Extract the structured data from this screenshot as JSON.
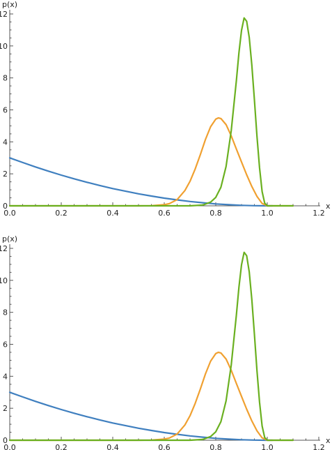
{
  "chart_data": [
    {
      "type": "line",
      "title": "",
      "xlabel": "x",
      "ylabel": "p(x)",
      "xlim": [
        0,
        1.2
      ],
      "ylim": [
        0,
        12
      ],
      "x_ticks": [
        0.0,
        0.2,
        0.4,
        0.6,
        0.8,
        1.0,
        1.2
      ],
      "x_tick_labels": [
        "0.0",
        "0.2",
        "0.4",
        "0.6",
        "0.8",
        "1.0",
        "1.2"
      ],
      "y_ticks": [
        0,
        2,
        4,
        6,
        8,
        10,
        12
      ],
      "y_tick_labels": [
        "0",
        "2",
        "4",
        "6",
        "8",
        "10",
        "12"
      ],
      "grid": false,
      "series": [
        {
          "color": "#3f7fbf",
          "x": [
            0,
            0.05,
            0.1,
            0.15,
            0.2,
            0.25,
            0.3,
            0.35,
            0.4,
            0.45,
            0.5,
            0.55,
            0.6,
            0.65,
            0.7,
            0.75,
            0.8,
            0.85,
            0.9,
            0.95,
            1.0,
            1.02
          ],
          "y": [
            3.0,
            2.71,
            2.43,
            2.17,
            1.92,
            1.69,
            1.47,
            1.27,
            1.08,
            0.91,
            0.75,
            0.61,
            0.48,
            0.37,
            0.27,
            0.19,
            0.12,
            0.07,
            0.03,
            0.01,
            0,
            0
          ]
        },
        {
          "color": "#f0a030",
          "x": [
            0,
            0.5,
            0.55,
            0.6,
            0.62,
            0.65,
            0.68,
            0.7,
            0.72,
            0.74,
            0.76,
            0.78,
            0.8,
            0.81,
            0.82,
            0.84,
            0.86,
            0.88,
            0.9,
            0.92,
            0.94,
            0.96,
            0.98,
            1.0,
            1.1
          ],
          "y": [
            0,
            0,
            0.01,
            0.07,
            0.14,
            0.39,
            0.95,
            1.53,
            2.3,
            3.2,
            4.15,
            4.95,
            5.42,
            5.5,
            5.46,
            5.08,
            4.38,
            3.55,
            2.74,
            1.94,
            1.21,
            0.59,
            0.15,
            0,
            0
          ]
        },
        {
          "color": "#6ab020",
          "x": [
            0,
            0.7,
            0.75,
            0.78,
            0.8,
            0.82,
            0.84,
            0.86,
            0.88,
            0.89,
            0.9,
            0.91,
            0.92,
            0.93,
            0.94,
            0.95,
            0.96,
            0.97,
            0.98,
            0.99,
            1.0,
            1.1
          ],
          "y": [
            0,
            0,
            0.05,
            0.23,
            0.53,
            1.16,
            2.46,
            4.69,
            7.83,
            9.58,
            10.97,
            11.75,
            11.54,
            10.53,
            8.81,
            6.64,
            4.35,
            2.38,
            0.89,
            0.17,
            0,
            0
          ]
        }
      ]
    },
    {
      "type": "line",
      "title": "",
      "xlabel": "x",
      "ylabel": "p(x)",
      "xlim": [
        0,
        1.2
      ],
      "ylim": [
        0,
        12
      ],
      "x_ticks": [
        0.0,
        0.2,
        0.4,
        0.6,
        0.8,
        1.0,
        1.2
      ],
      "x_tick_labels": [
        "0.0",
        "0.2",
        "0.4",
        "0.6",
        "0.8",
        "1.0",
        "1.2"
      ],
      "y_ticks": [
        0,
        2,
        4,
        6,
        8,
        10,
        12
      ],
      "y_tick_labels": [
        "0",
        "2",
        "4",
        "6",
        "8",
        "10",
        "12"
      ],
      "grid": false,
      "series": [
        {
          "color": "#3f7fbf",
          "x": [
            0,
            0.05,
            0.1,
            0.15,
            0.2,
            0.25,
            0.3,
            0.35,
            0.4,
            0.45,
            0.5,
            0.55,
            0.6,
            0.65,
            0.7,
            0.75,
            0.8,
            0.85,
            0.9,
            0.95,
            1.0,
            1.02
          ],
          "y": [
            3.0,
            2.71,
            2.43,
            2.17,
            1.92,
            1.69,
            1.47,
            1.27,
            1.08,
            0.91,
            0.75,
            0.61,
            0.48,
            0.37,
            0.27,
            0.19,
            0.12,
            0.07,
            0.03,
            0.01,
            0,
            0
          ]
        },
        {
          "color": "#f0a030",
          "x": [
            0,
            0.5,
            0.55,
            0.6,
            0.62,
            0.65,
            0.68,
            0.7,
            0.72,
            0.74,
            0.76,
            0.78,
            0.8,
            0.81,
            0.82,
            0.84,
            0.86,
            0.88,
            0.9,
            0.92,
            0.94,
            0.96,
            0.98,
            1.0,
            1.1
          ],
          "y": [
            0,
            0,
            0.01,
            0.07,
            0.14,
            0.39,
            0.95,
            1.53,
            2.3,
            3.2,
            4.15,
            4.95,
            5.42,
            5.5,
            5.46,
            5.08,
            4.38,
            3.55,
            2.74,
            1.94,
            1.21,
            0.59,
            0.15,
            0,
            0
          ]
        },
        {
          "color": "#6ab020",
          "x": [
            0,
            0.7,
            0.75,
            0.78,
            0.8,
            0.82,
            0.84,
            0.86,
            0.88,
            0.89,
            0.9,
            0.91,
            0.92,
            0.93,
            0.94,
            0.95,
            0.96,
            0.97,
            0.98,
            0.99,
            1.0,
            1.1
          ],
          "y": [
            0,
            0,
            0.05,
            0.23,
            0.53,
            1.16,
            2.46,
            4.69,
            7.83,
            9.58,
            10.97,
            11.75,
            11.54,
            10.53,
            8.81,
            6.64,
            4.35,
            2.38,
            0.89,
            0.17,
            0,
            0
          ]
        }
      ]
    }
  ]
}
